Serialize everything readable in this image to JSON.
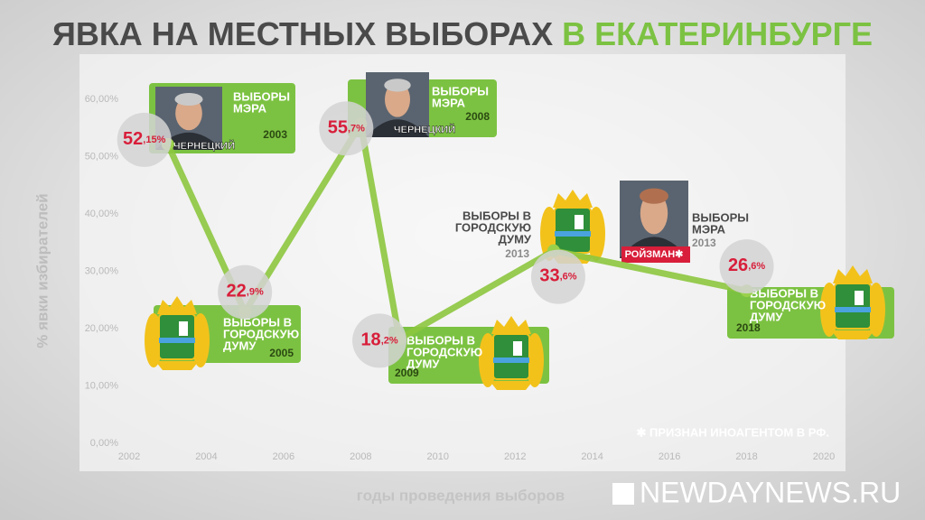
{
  "chart_data": {
    "type": "line",
    "title": "ЯВКА НА МЕСТНЫХ ВЫБОРАХ",
    "title_highlight": "В ЕКАТЕРИНБУРГЕ",
    "y_label": "% явки избирателей",
    "x_label": "годы проведения выборов",
    "x": [
      2003,
      2005,
      2008,
      2009,
      2013,
      2018
    ],
    "values": [
      52.15,
      22.9,
      55.7,
      18.2,
      33.6,
      26.6
    ],
    "value_labels": [
      "52,15%",
      "22,9%",
      "55,7%",
      "18,2%",
      "33,6%",
      "26,6%"
    ],
    "color": "#8dc63f",
    "xlim": [
      2002,
      2020
    ],
    "xticks": [
      2002,
      2004,
      2006,
      2008,
      2010,
      2012,
      2014,
      2016,
      2018,
      2020
    ],
    "ylim": [
      0,
      60
    ],
    "yticks": [
      {
        "value": 0,
        "label": "0,00%"
      },
      {
        "value": 10,
        "label": "10,00%"
      },
      {
        "value": 20,
        "label": "20,00%"
      },
      {
        "value": 30,
        "label": "30,00%"
      },
      {
        "value": 40,
        "label": "40,00%"
      },
      {
        "value": 50,
        "label": "50,00%"
      },
      {
        "value": 60,
        "label": "60,00%"
      }
    ],
    "grid": false,
    "annotations": [
      {
        "lines": [
          "ВЫБОРЫ",
          "МЭРА"
        ],
        "year": "2003",
        "person": "ЧЕРНЕЦКИЙ"
      },
      {
        "lines": [
          "ВЫБОРЫ В",
          "ГОРОДСКУЮ",
          "ДУМУ"
        ],
        "year": "2005"
      },
      {
        "lines": [
          "ВЫБОРЫ",
          "МЭРА"
        ],
        "year": "2008",
        "person": "ЧЕРНЕЦКИЙ"
      },
      {
        "lines": [
          "ВЫБОРЫ В",
          "ГОРОДСКУЮ",
          "ДУМУ"
        ],
        "year": "2009"
      },
      {
        "lines": [
          "ВЫБОРЫ В",
          "ГОРОДСКУЮ",
          "ДУМУ"
        ],
        "year": "2013"
      },
      {
        "lines": [
          "ВЫБОРЫ",
          "МЭРА"
        ],
        "year": "2013",
        "person": "РОЙЗМАН✱"
      },
      {
        "lines": [
          "ВЫБОРЫ В",
          "ГОРОДСКУЮ",
          "ДУМУ"
        ],
        "year": "2018"
      }
    ],
    "footnote": "✱ ПРИЗНАН ИНОАГЕНТОМ В РФ.",
    "watermark": "NEWDAYNEWS.RU"
  }
}
